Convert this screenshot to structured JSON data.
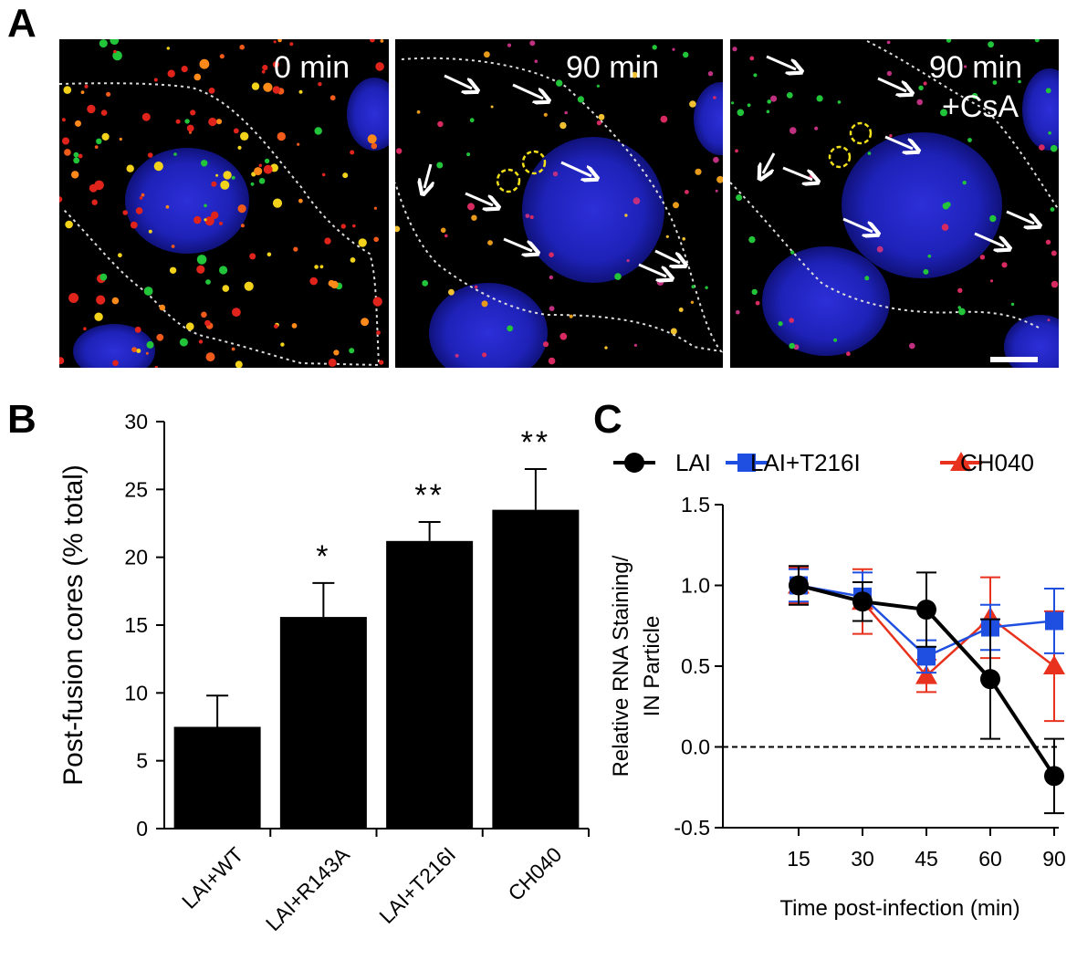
{
  "panel_a": {
    "letter": "A",
    "images": [
      {
        "label": "0 min",
        "label2": ""
      },
      {
        "label": "90 min",
        "label2": ""
      },
      {
        "label": "90 min",
        "label2": "+CsA"
      }
    ]
  },
  "chart_data": [
    {
      "panel": "B",
      "type": "bar",
      "title": "",
      "xlabel": "",
      "ylabel": "Post-fusion cores (% total)",
      "ylim": [
        0,
        30
      ],
      "yticks": [
        0,
        5,
        10,
        15,
        20,
        25,
        30
      ],
      "categories": [
        "LAI+WT",
        "LAI+R143A",
        "LAI+T216I",
        "CH040"
      ],
      "values": [
        7.5,
        15.6,
        21.2,
        23.5
      ],
      "errors": [
        2.3,
        2.5,
        1.4,
        3.0
      ],
      "significance": [
        "",
        "*",
        "**",
        "**"
      ],
      "bar_color": "#000000"
    },
    {
      "panel": "C",
      "type": "line",
      "title": "",
      "xlabel": "Time post-infection (min)",
      "ylabel_line1": "Relative RNA Staining/",
      "ylabel_line2": "IN Particle",
      "ylim": [
        -0.5,
        1.5
      ],
      "yticks": [
        -0.5,
        0.0,
        0.5,
        1.0,
        1.5
      ],
      "ytick_labels": [
        "-0.5",
        "0.0",
        "0.5",
        "1.0",
        "1.5"
      ],
      "x": [
        15,
        30,
        45,
        60,
        90
      ],
      "reference_line": 0.0,
      "series": [
        {
          "name": "LAI",
          "color": "#000000",
          "marker": "circle",
          "values": [
            1.0,
            0.9,
            0.85,
            0.42,
            -0.18
          ],
          "errors": [
            0.12,
            0.12,
            0.23,
            0.37,
            0.23
          ]
        },
        {
          "name": "LAI+T216I",
          "color": "#1f4fe0",
          "marker": "square",
          "values": [
            1.0,
            0.93,
            0.56,
            0.74,
            0.78
          ],
          "errors": [
            0.1,
            0.15,
            0.1,
            0.14,
            0.2
          ]
        },
        {
          "name": "CH040",
          "color": "#e8321e",
          "marker": "triangle",
          "values": [
            1.0,
            0.9,
            0.44,
            0.8,
            0.5
          ],
          "errors": [
            0.11,
            0.2,
            0.1,
            0.25,
            0.34
          ]
        }
      ]
    }
  ]
}
